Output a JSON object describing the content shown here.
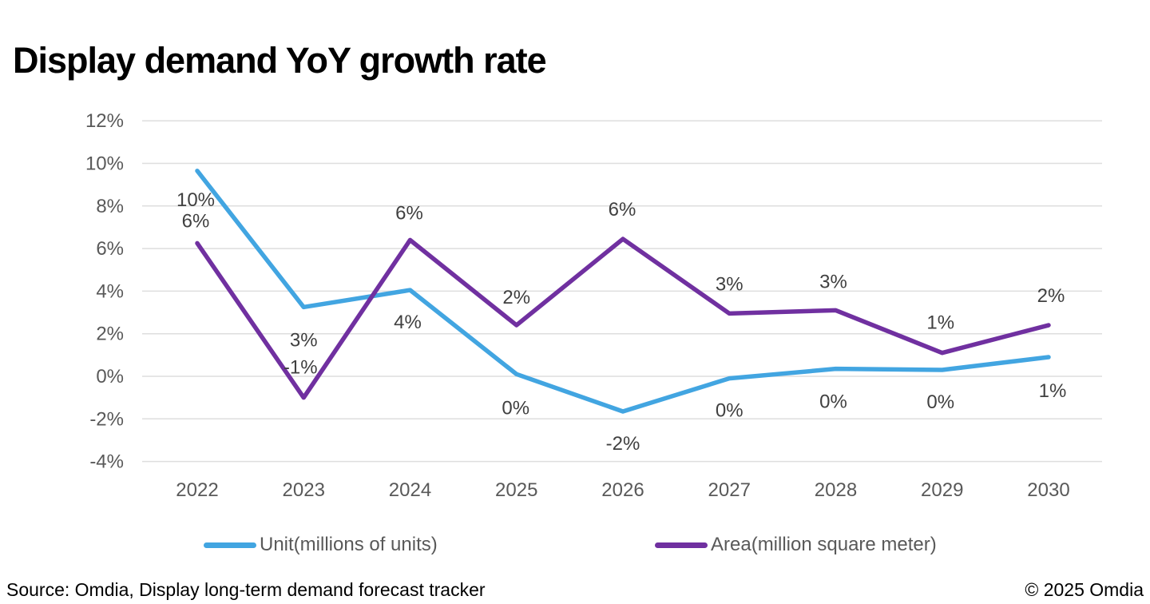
{
  "title": "Display demand YoY growth rate",
  "chart_data": {
    "type": "line",
    "title": "Display demand YoY growth rate",
    "categories": [
      "2022",
      "2023",
      "2024",
      "2025",
      "2026",
      "2027",
      "2028",
      "2029",
      "2030"
    ],
    "series": [
      {
        "name": "Unit(millions of units)",
        "color": "#42A5E1",
        "values": [
          9.65,
          3.25,
          4.05,
          0.1,
          -1.65,
          -0.1,
          0.35,
          0.3,
          0.9
        ],
        "labels": [
          "10%",
          "3%",
          "4%",
          "0%",
          "-2%",
          "0%",
          "0%",
          "0%",
          "1%"
        ],
        "label_side": "below",
        "label_dx": [
          -2,
          0,
          -3,
          -1,
          0,
          0,
          -3,
          -2,
          5
        ],
        "label_dy": [
          36,
          41,
          40,
          42,
          40,
          40,
          41,
          40,
          42
        ]
      },
      {
        "name": "Area(million square meter)",
        "color": "#7030A0",
        "values": [
          6.25,
          -1.0,
          6.4,
          2.4,
          6.45,
          2.95,
          3.1,
          1.1,
          2.4
        ],
        "labels": [
          "6%",
          "-1%",
          "6%",
          "2%",
          "6%",
          "3%",
          "3%",
          "1%",
          "2%"
        ],
        "label_side": "above",
        "label_dx": [
          -2,
          -4,
          -1,
          0,
          -1,
          0,
          -3,
          -2,
          3
        ],
        "label_dy": [
          -28,
          -38,
          -34,
          -35,
          -37,
          -37,
          -36,
          -38,
          -37
        ]
      }
    ],
    "ylim": [
      -4,
      12
    ],
    "ytick_step": 2,
    "ytick_labels": [
      "12%",
      "10%",
      "8%",
      "6%",
      "4%",
      "2%",
      "0%",
      "-2%",
      "-4%"
    ],
    "ytick_values": [
      12,
      10,
      8,
      6,
      4,
      2,
      0,
      -2,
      -4
    ],
    "grid": true,
    "legend_position": "bottom",
    "colors": {
      "axis_label": "#595959",
      "data_label": "#404040",
      "gridline": "#DEDEDE"
    }
  },
  "footer": {
    "source": "Source: Omdia, Display long-term demand forecast tracker",
    "copyright": "© 2025 Omdia"
  }
}
